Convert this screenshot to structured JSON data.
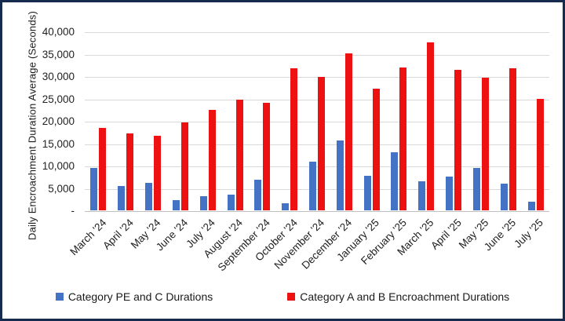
{
  "frame": {
    "border_color": "#172b4e",
    "background": "#ffffff"
  },
  "colors": {
    "series_blue": "#4472c4",
    "series_red": "#ee1111",
    "gridline": "#d9d9d9",
    "axis_line": "#bfbfbf",
    "text": "#1f1f1f"
  },
  "chart_data": {
    "type": "bar",
    "title": "",
    "xlabel": "",
    "ylabel": "Daily Encroachment Duration Average (Seconds)",
    "ylim": [
      0,
      40000
    ],
    "ytick_interval": 5000,
    "ytick_labels": [
      "40,000",
      "35,000",
      "30,000",
      "25,000",
      "20,000",
      "15,000",
      "10,000",
      "5,000",
      "-"
    ],
    "grid": true,
    "legend_position": "bottom",
    "categories": [
      "March '24",
      "April '24",
      "May '24",
      "June '24",
      "July '24",
      "August '24",
      "September '24",
      "October '24",
      "November '24",
      "December '24",
      "January '25",
      "February '25",
      "March '25",
      "April '25",
      "May '25",
      "June '25",
      "July '25"
    ],
    "series": [
      {
        "name": "Category PE and C Durations",
        "color": "#4472c4",
        "values": [
          9500,
          5500,
          6100,
          2300,
          3100,
          3500,
          6800,
          1500,
          10900,
          15700,
          7800,
          12900,
          6500,
          7600,
          9500,
          6000,
          2000
        ]
      },
      {
        "name": "Category A and B Encroachment Durations",
        "color": "#ee1111",
        "values": [
          18500,
          17200,
          16600,
          19600,
          22400,
          24700,
          24100,
          31800,
          29900,
          35100,
          27200,
          32000,
          37500,
          31400,
          29600,
          31800,
          24900
        ]
      }
    ]
  }
}
